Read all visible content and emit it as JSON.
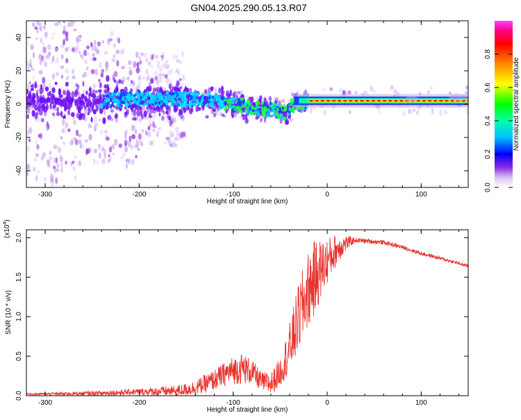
{
  "title": "GN04.2025.290.05.13.R07",
  "chart_data": [
    {
      "type": "heatmap",
      "xlabel": "Height of straight line (km)",
      "ylabel": "Frequency (Hz)",
      "xlim": [
        -320,
        150
      ],
      "ylim": [
        -50,
        50
      ],
      "xticks": [
        -300,
        -200,
        -100,
        0,
        100
      ],
      "xtick_labels": [
        "-300",
        "-200",
        "-100",
        "0",
        "100"
      ],
      "yticks": [
        -40,
        -20,
        0,
        20,
        40
      ],
      "ytick_labels": [
        "-40",
        "-20",
        "0",
        "20",
        "40"
      ],
      "ridge": {
        "x": [
          -320,
          -250,
          -200,
          -150,
          -120,
          -100,
          -80,
          -60,
          -45,
          -35,
          -20,
          0,
          20,
          60,
          100,
          150
        ],
        "freq": [
          2,
          2,
          3,
          3,
          2,
          0,
          -2,
          -3,
          -6,
          0,
          2,
          2,
          2,
          2,
          2,
          3
        ]
      },
      "colorbar": {
        "label": "Normalized spectral amplitude",
        "range": [
          0.0,
          1.0
        ],
        "ticks": [
          0.0,
          0.2,
          0.4,
          0.6,
          0.8
        ],
        "tick_labels": [
          "0.0",
          "0.2",
          "0.4",
          "0.6",
          "0.8"
        ],
        "colors": [
          "#ffffff",
          "#d9c2f2",
          "#8a2be2",
          "#5a00ff",
          "#0000ff",
          "#00ffff",
          "#00ff00",
          "#ffff00",
          "#ff8000",
          "#ff0000",
          "#ff0080",
          "#ff40ff"
        ]
      }
    },
    {
      "type": "line",
      "xlabel": "Height of straight line (km)",
      "ylabel": "SNR (10 * v/v)",
      "scale_label": "(x10",
      "scale_exp": "4",
      "scale_close": ")",
      "xlim": [
        -320,
        150
      ],
      "ylim": [
        0,
        2.1
      ],
      "xticks": [
        -300,
        -200,
        -100,
        0,
        100
      ],
      "xtick_labels": [
        "-300",
        "-200",
        "-100",
        "0",
        "100"
      ],
      "yticks": [
        0.0,
        0.5,
        1.0,
        1.5,
        2.0
      ],
      "ytick_labels": [
        "0.0",
        "0.5",
        "1.0",
        "1.5",
        "2.0"
      ],
      "line_color": "#e8322d",
      "envelope": {
        "x": [
          -320,
          -250,
          -200,
          -160,
          -140,
          -120,
          -105,
          -90,
          -80,
          -70,
          -60,
          -50,
          -40,
          -30,
          -20,
          -10,
          0,
          10,
          20,
          30,
          40,
          60,
          80,
          100,
          120,
          150
        ],
        "y": [
          0.02,
          0.03,
          0.05,
          0.06,
          0.1,
          0.2,
          0.3,
          0.35,
          0.3,
          0.18,
          0.15,
          0.3,
          0.6,
          1.0,
          1.35,
          1.55,
          1.7,
          1.85,
          1.93,
          1.97,
          1.96,
          1.94,
          1.88,
          1.8,
          1.74,
          1.64
        ]
      },
      "noise": {
        "x": [
          -320,
          -200,
          -150,
          -110,
          -90,
          -70,
          -50,
          -30,
          -15,
          0,
          20,
          30,
          150
        ],
        "amp": [
          0.01,
          0.04,
          0.08,
          0.15,
          0.2,
          0.12,
          0.18,
          0.45,
          0.5,
          0.3,
          0.1,
          0.03,
          0.02
        ]
      }
    }
  ]
}
